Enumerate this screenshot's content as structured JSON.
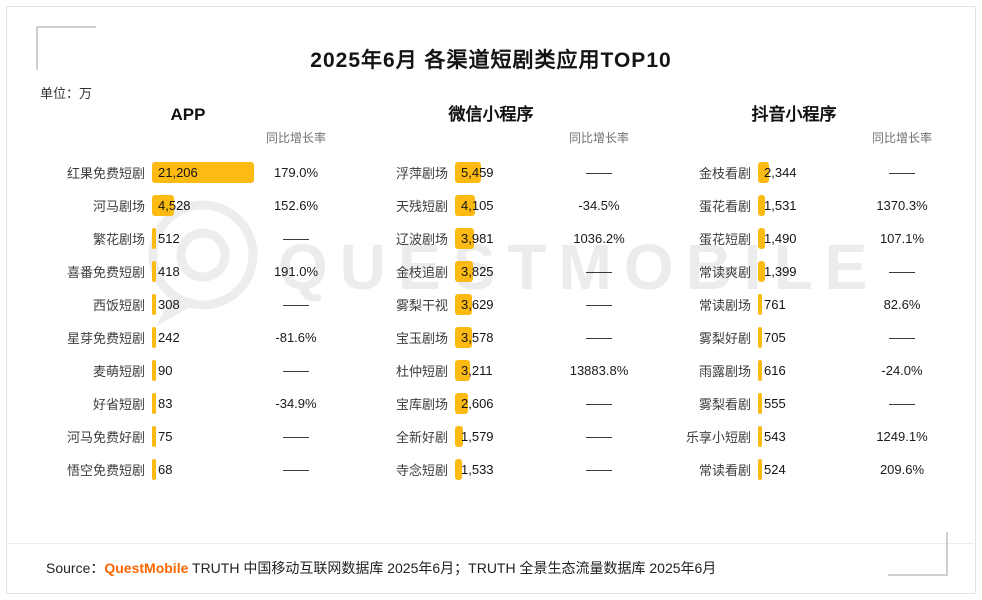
{
  "title": "2025年6月 各渠道短剧类应用TOP10",
  "unit_label": "单位：万",
  "growth_header": "同比增长率",
  "watermark_text": "QUESTMOBILE",
  "footer": {
    "source_prefix": "Source：",
    "brand": "QuestMobile",
    "source_rest": " TRUTH 中国移动互联网数据库 2025年6月；TRUTH 全景生态流量数据库 2025年6月"
  },
  "colors": {
    "bar": "#FCBA12",
    "brand_orange": "#FF6600",
    "watermark_gray": "#ECECEC"
  },
  "chart_data": {
    "type": "bar",
    "orientation": "horizontal",
    "title": "2025年6月 各渠道短剧类应用TOP10",
    "unit": "万",
    "max_value": 21206,
    "groups": [
      {
        "name": "APP",
        "rows": [
          {
            "label": "红果免费短剧",
            "value": 21206,
            "display": "21,206",
            "growth": "179.0%"
          },
          {
            "label": "河马剧场",
            "value": 4528,
            "display": "4,528",
            "growth": "152.6%"
          },
          {
            "label": "繁花剧场",
            "value": 512,
            "display": "512",
            "growth": "——"
          },
          {
            "label": "喜番免费短剧",
            "value": 418,
            "display": "418",
            "growth": "191.0%"
          },
          {
            "label": "西饭短剧",
            "value": 308,
            "display": "308",
            "growth": "——"
          },
          {
            "label": "星芽免费短剧",
            "value": 242,
            "display": "242",
            "growth": "-81.6%"
          },
          {
            "label": "麦萌短剧",
            "value": 90,
            "display": "90",
            "growth": "——"
          },
          {
            "label": "好省短剧",
            "value": 83,
            "display": "83",
            "growth": "-34.9%"
          },
          {
            "label": "河马免费好剧",
            "value": 75,
            "display": "75",
            "growth": "——"
          },
          {
            "label": "悟空免费短剧",
            "value": 68,
            "display": "68",
            "growth": "——"
          }
        ]
      },
      {
        "name": "微信小程序",
        "rows": [
          {
            "label": "浮萍剧场",
            "value": 5459,
            "display": "5,459",
            "growth": "——"
          },
          {
            "label": "天残短剧",
            "value": 4105,
            "display": "4,105",
            "growth": "-34.5%"
          },
          {
            "label": "辽波剧场",
            "value": 3981,
            "display": "3,981",
            "growth": "1036.2%"
          },
          {
            "label": "金枝追剧",
            "value": 3825,
            "display": "3,825",
            "growth": "——"
          },
          {
            "label": "雾梨干视",
            "value": 3629,
            "display": "3,629",
            "growth": "——"
          },
          {
            "label": "宝玉剧场",
            "value": 3578,
            "display": "3,578",
            "growth": "——"
          },
          {
            "label": "杜仲短剧",
            "value": 3211,
            "display": "3,211",
            "growth": "13883.8%"
          },
          {
            "label": "宝库剧场",
            "value": 2606,
            "display": "2,606",
            "growth": "——"
          },
          {
            "label": "全新好剧",
            "value": 1579,
            "display": "1,579",
            "growth": "——"
          },
          {
            "label": "寺念短剧",
            "value": 1533,
            "display": "1,533",
            "growth": "——"
          }
        ]
      },
      {
        "name": "抖音小程序",
        "rows": [
          {
            "label": "金枝看剧",
            "value": 2344,
            "display": "2,344",
            "growth": "——"
          },
          {
            "label": "蛋花看剧",
            "value": 1531,
            "display": "1,531",
            "growth": "1370.3%"
          },
          {
            "label": "蛋花短剧",
            "value": 1490,
            "display": "1,490",
            "growth": "107.1%"
          },
          {
            "label": "常读爽剧",
            "value": 1399,
            "display": "1,399",
            "growth": "——"
          },
          {
            "label": "常读剧场",
            "value": 761,
            "display": "761",
            "growth": "82.6%"
          },
          {
            "label": "雾梨好剧",
            "value": 705,
            "display": "705",
            "growth": "——"
          },
          {
            "label": "雨露剧场",
            "value": 616,
            "display": "616",
            "growth": "-24.0%"
          },
          {
            "label": "雾梨看剧",
            "value": 555,
            "display": "555",
            "growth": "——"
          },
          {
            "label": "乐享小短剧",
            "value": 543,
            "display": "543",
            "growth": "1249.1%"
          },
          {
            "label": "常读看剧",
            "value": 524,
            "display": "524",
            "growth": "209.6%"
          }
        ]
      }
    ]
  }
}
